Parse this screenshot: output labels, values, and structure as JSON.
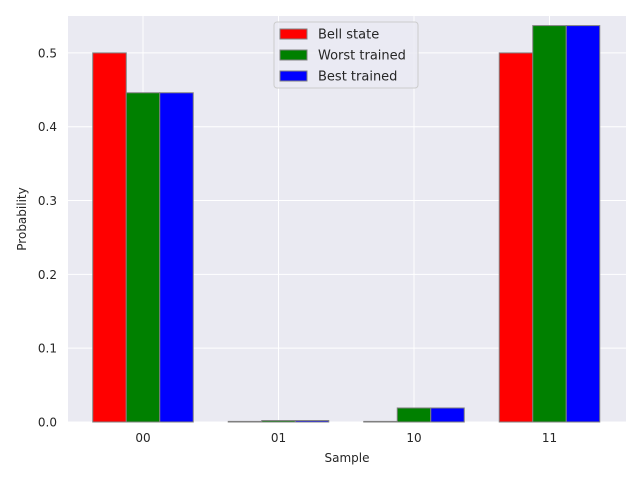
{
  "chart_data": {
    "type": "bar",
    "categories": [
      "00",
      "01",
      "10",
      "11"
    ],
    "series": [
      {
        "name": "Bell state",
        "values": [
          0.5,
          0.0,
          0.0,
          0.5
        ]
      },
      {
        "name": "Worst trained",
        "values": [
          0.446,
          0.002,
          0.019,
          0.537
        ]
      },
      {
        "name": "Best trained",
        "values": [
          0.446,
          0.002,
          0.019,
          0.537
        ]
      }
    ],
    "xlabel": "Sample",
    "ylabel": "Probability",
    "ylim": [
      0,
      0.55
    ],
    "yticks": [
      "0.0",
      "0.1",
      "0.2",
      "0.3",
      "0.4",
      "0.5"
    ],
    "grid": true,
    "legend_position": "top-center",
    "colors": {
      "background": "#eaeaf2",
      "grid": "#ffffff",
      "bar_edge": "#808080",
      "series": [
        "#ff0000",
        "#008000",
        "#0000ff"
      ]
    }
  }
}
